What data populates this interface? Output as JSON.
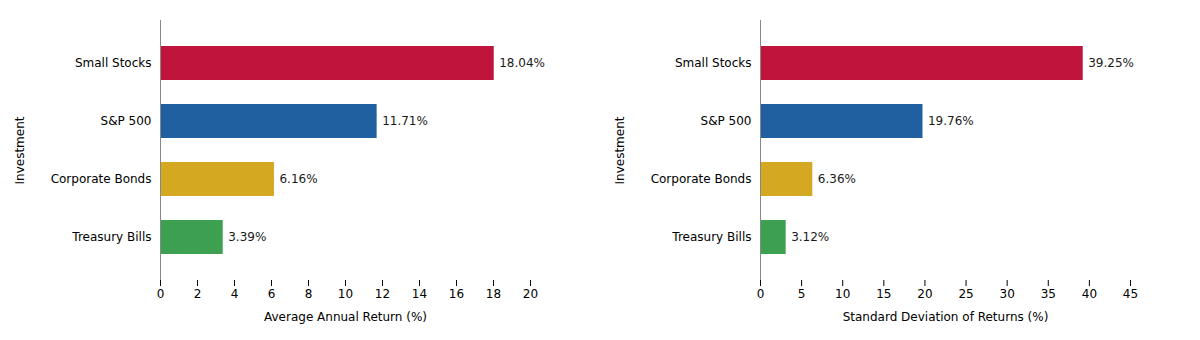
{
  "chart_data": [
    {
      "type": "bar",
      "orientation": "horizontal",
      "categories": [
        "Small Stocks",
        "S&P 500",
        "Corporate Bonds",
        "Treasury Bills"
      ],
      "values": [
        18.04,
        11.71,
        6.16,
        3.39
      ],
      "value_labels": [
        "18.04%",
        "11.71%",
        "6.16%",
        "3.39%"
      ],
      "data_labels": true,
      "colors": [
        "#C0143C",
        "#2060A0",
        "#D4A820",
        "#3CA050"
      ],
      "xlabel": "Average Annual Return (%)",
      "ylabel": "Investment",
      "xlim": [
        0,
        20
      ],
      "xticks": [
        0,
        2,
        4,
        6,
        8,
        10,
        12,
        14,
        16,
        18,
        20
      ],
      "grid": false
    },
    {
      "type": "bar",
      "orientation": "horizontal",
      "categories": [
        "Small Stocks",
        "S&P 500",
        "Corporate Bonds",
        "Treasury Bills"
      ],
      "values": [
        39.25,
        19.76,
        6.36,
        3.12
      ],
      "value_labels": [
        "39.25%",
        "19.76%",
        "6.36%",
        "3.12%"
      ],
      "data_labels": true,
      "colors": [
        "#C0143C",
        "#2060A0",
        "#D4A820",
        "#3CA050"
      ],
      "xlabel": "Standard Deviation of Returns (%)",
      "ylabel": "Investment",
      "xlim": [
        0,
        45
      ],
      "xticks": [
        0,
        5,
        10,
        15,
        20,
        25,
        30,
        35,
        40,
        45
      ],
      "grid": false
    }
  ]
}
